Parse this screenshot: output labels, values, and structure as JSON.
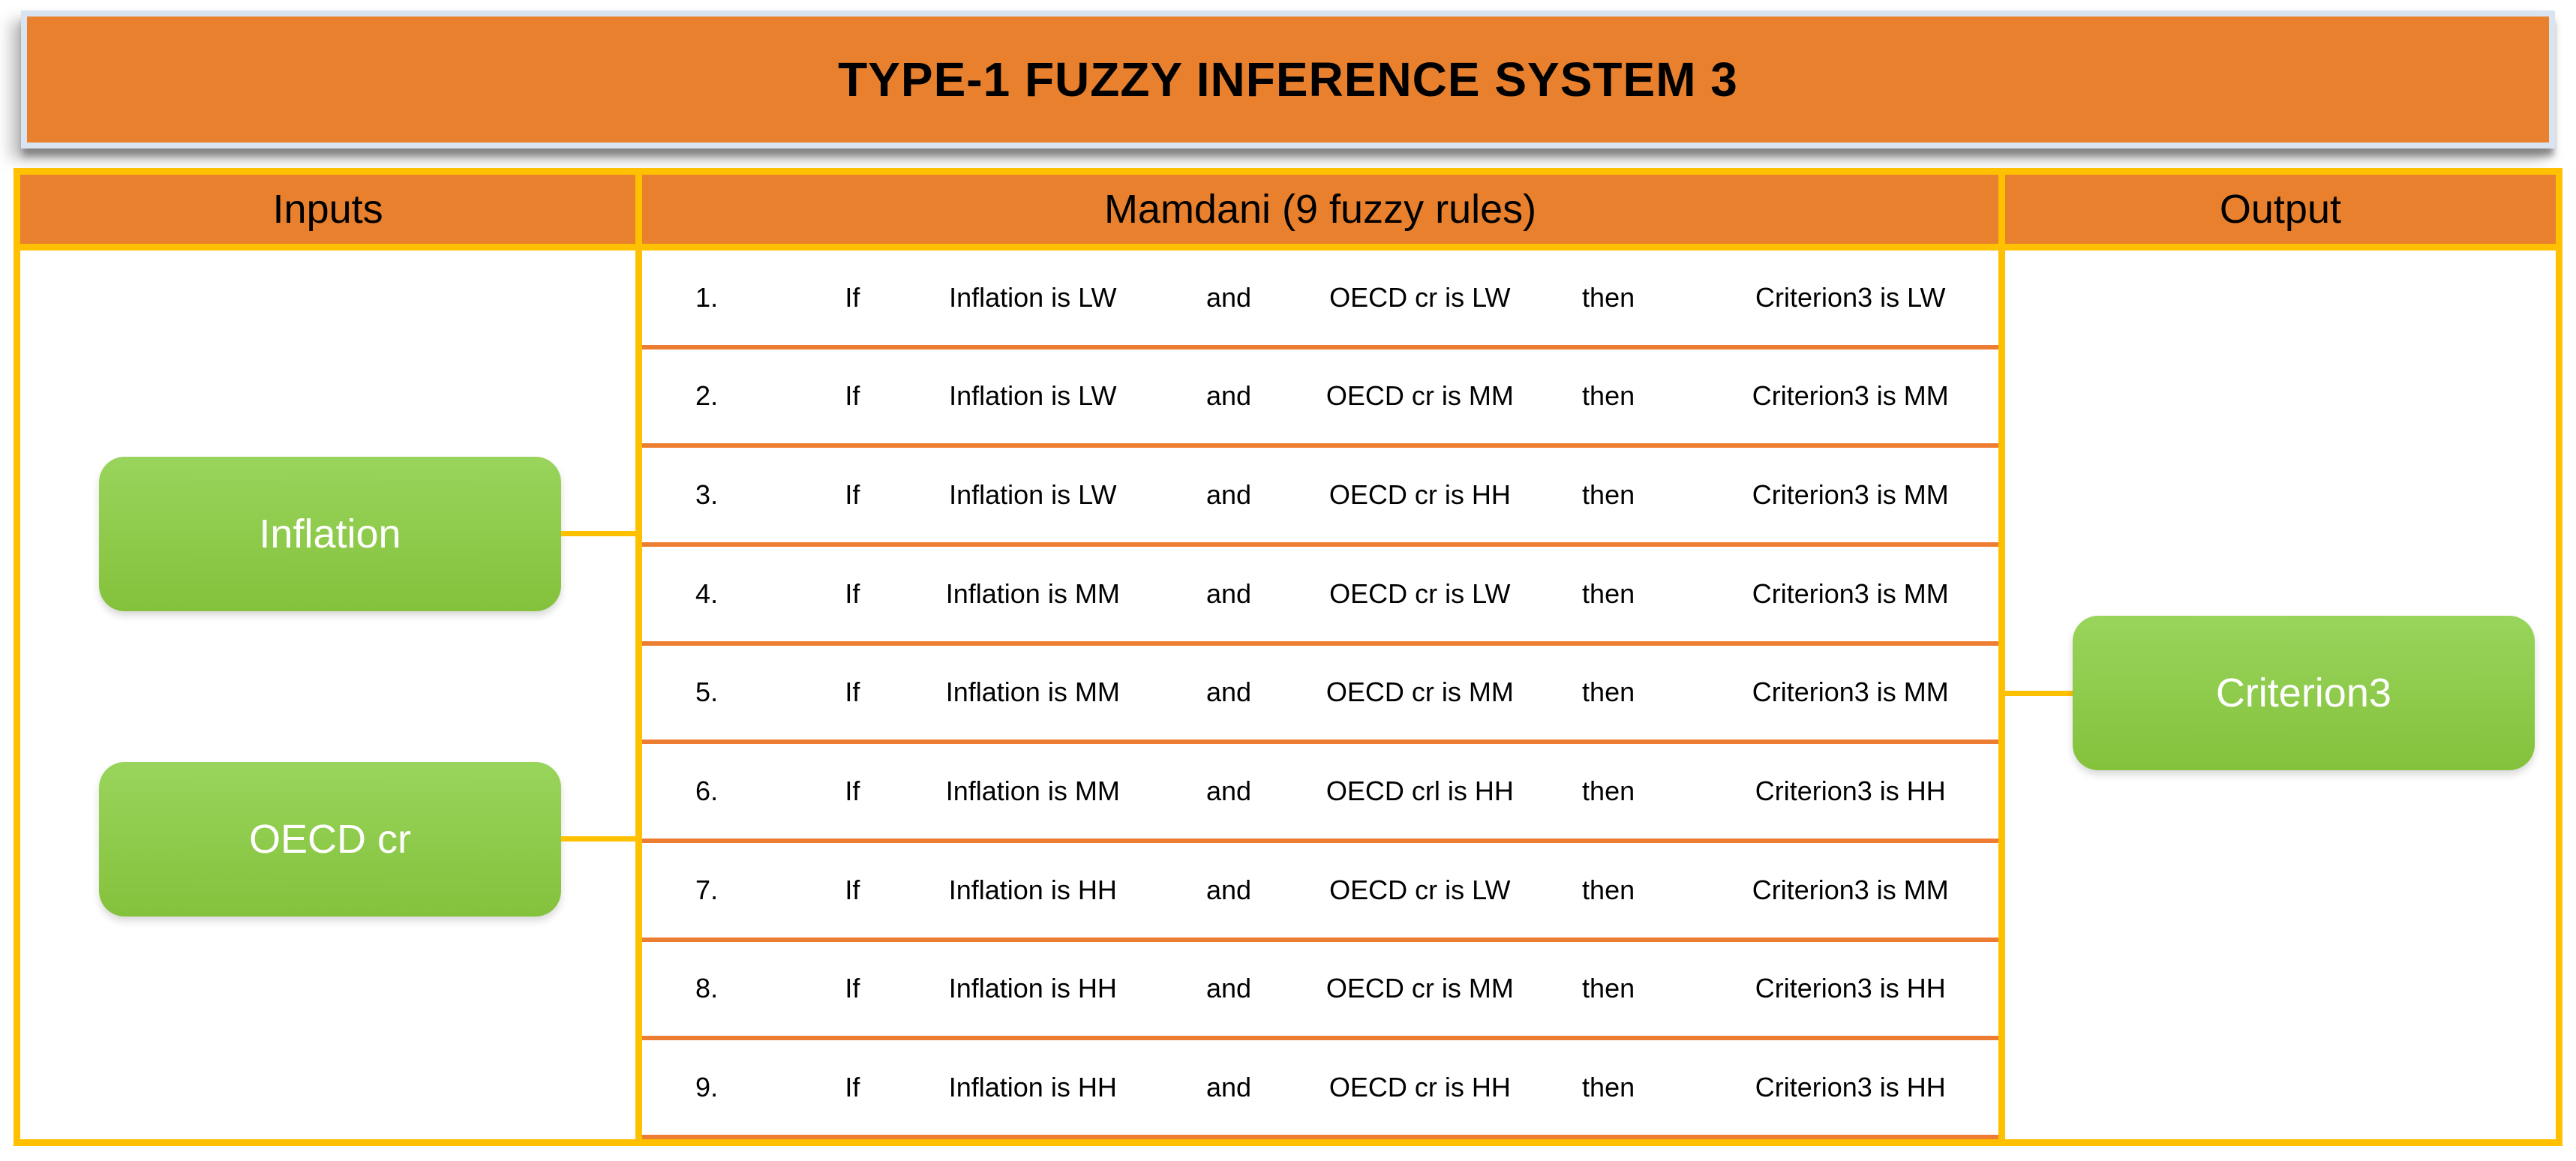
{
  "title": "TYPE-1 FUZZY INFERENCE SYSTEM 3",
  "headers": {
    "inputs": "Inputs",
    "rules": "Mamdani (9 fuzzy rules)",
    "output": "Output"
  },
  "inputs": {
    "boxes": [
      {
        "label": "Inflation"
      },
      {
        "label": "OECD cr"
      }
    ]
  },
  "output": {
    "box": {
      "label": "Criterion3"
    }
  },
  "rules": [
    {
      "num": "1.",
      "if": "If",
      "a": "Inflation is LW",
      "and": "and",
      "b": "OECD cr is LW",
      "then": "then",
      "c": "Criterion3 is LW"
    },
    {
      "num": "2.",
      "if": "If",
      "a": "Inflation is LW",
      "and": "and",
      "b": "OECD cr is MM",
      "then": "then",
      "c": "Criterion3 is MM"
    },
    {
      "num": "3.",
      "if": "If",
      "a": "Inflation is LW",
      "and": "and",
      "b": "OECD cr is HH",
      "then": "then",
      "c": "Criterion3 is MM"
    },
    {
      "num": "4.",
      "if": "If",
      "a": "Inflation is MM",
      "and": "and",
      "b": "OECD cr is LW",
      "then": "then",
      "c": "Criterion3 is MM"
    },
    {
      "num": "5.",
      "if": "If",
      "a": "Inflation is MM",
      "and": "and",
      "b": "OECD cr is MM",
      "then": "then",
      "c": "Criterion3 is MM"
    },
    {
      "num": "6.",
      "if": "If",
      "a": "Inflation is MM",
      "and": "and",
      "b": "OECD crl is HH",
      "then": "then",
      "c": "Criterion3 is HH"
    },
    {
      "num": "7.",
      "if": "If",
      "a": "Inflation is HH",
      "and": "and",
      "b": "OECD cr is LW",
      "then": "then",
      "c": "Criterion3 is MM"
    },
    {
      "num": "8.",
      "if": "If",
      "a": "Inflation is HH",
      "and": "and",
      "b": "OECD cr is MM",
      "then": "then",
      "c": "Criterion3 is HH"
    },
    {
      "num": "9.",
      "if": "If",
      "a": "Inflation is HH",
      "and": "and",
      "b": "OECD cr is HH",
      "then": "then",
      "c": "Criterion3 is HH"
    }
  ],
  "colors": {
    "header_fill": "#E8802E",
    "border_gold": "#FFC000",
    "rule_separator": "#ED7D31",
    "box_green": "#8FCA4C",
    "title_border": "#D8E4F0",
    "text": "#000000",
    "box_text": "#FFFFFF"
  }
}
